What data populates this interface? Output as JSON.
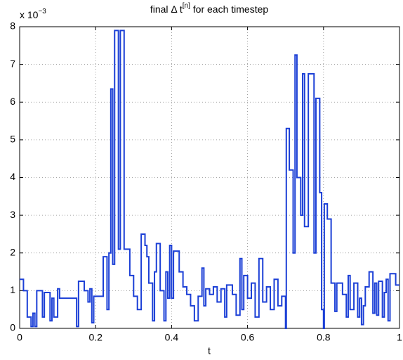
{
  "chart_data": {
    "type": "line",
    "title": {
      "text": "final Δ t",
      "superscript": "[n]",
      "rest": " for each timestep"
    },
    "multiplier": {
      "text": "x 10",
      "superscript": "−3"
    },
    "x_label": "t",
    "drawstyle": "steps-post",
    "grid": true,
    "xlim": [
      0,
      1
    ],
    "xticks": [
      0,
      0.2,
      0.4,
      0.6,
      0.8,
      1
    ],
    "ylim": [
      0,
      8
    ],
    "yticks": [
      0,
      1,
      2,
      3,
      4,
      5,
      6,
      7,
      8
    ],
    "x": [
      0,
      0.01,
      0.02,
      0.03,
      0.035,
      0.04,
      0.045,
      0.06,
      0.065,
      0.08,
      0.085,
      0.09,
      0.1,
      0.105,
      0.15,
      0.155,
      0.17,
      0.18,
      0.185,
      0.19,
      0.195,
      0.22,
      0.23,
      0.235,
      0.24,
      0.245,
      0.25,
      0.26,
      0.265,
      0.275,
      0.29,
      0.3,
      0.31,
      0.32,
      0.33,
      0.335,
      0.34,
      0.35,
      0.355,
      0.36,
      0.37,
      0.38,
      0.385,
      0.39,
      0.395,
      0.4,
      0.405,
      0.42,
      0.43,
      0.44,
      0.45,
      0.46,
      0.47,
      0.48,
      0.485,
      0.49,
      0.5,
      0.51,
      0.52,
      0.53,
      0.54,
      0.545,
      0.56,
      0.57,
      0.58,
      0.585,
      0.59,
      0.6,
      0.61,
      0.62,
      0.63,
      0.64,
      0.65,
      0.66,
      0.67,
      0.68,
      0.69,
      0.7,
      0.702,
      0.71,
      0.72,
      0.725,
      0.73,
      0.74,
      0.745,
      0.75,
      0.76,
      0.775,
      0.78,
      0.79,
      0.795,
      0.8,
      0.802,
      0.81,
      0.82,
      0.83,
      0.835,
      0.85,
      0.86,
      0.865,
      0.87,
      0.88,
      0.89,
      0.895,
      0.9,
      0.905,
      0.91,
      0.92,
      0.93,
      0.935,
      0.94,
      0.945,
      0.955,
      0.96,
      0.965,
      0.97,
      0.975,
      0.99,
      1
    ],
    "series": [
      {
        "color": "#1b3fd6",
        "values": [
          1.3,
          1.0,
          0.3,
          0.05,
          0.4,
          0.05,
          1.0,
          0.3,
          0.95,
          0.2,
          0.8,
          0.3,
          1.05,
          0.8,
          0.05,
          1.25,
          1.0,
          0.7,
          1.05,
          0.15,
          0.85,
          1.9,
          0.5,
          2.0,
          6.35,
          1.7,
          7.9,
          2.1,
          7.9,
          2.1,
          1.4,
          0.85,
          0.5,
          2.5,
          2.2,
          1.9,
          1.2,
          0.2,
          1.5,
          2.25,
          1.0,
          0.2,
          1.5,
          0.8,
          2.2,
          0.8,
          2.05,
          1.5,
          1.1,
          0.9,
          0.6,
          0.2,
          0.85,
          1.6,
          0.6,
          1.05,
          0.9,
          1.1,
          0.7,
          1.05,
          0.3,
          1.15,
          0.9,
          0.35,
          1.85,
          0.5,
          1.4,
          0.8,
          1.2,
          0.3,
          1.85,
          0.7,
          1.1,
          0.5,
          1.3,
          0.6,
          0.85,
          0,
          5.3,
          4.2,
          2.0,
          7.25,
          4.0,
          3.0,
          6.75,
          2.7,
          6.75,
          2.0,
          6.1,
          3.6,
          0.5,
          0,
          3.3,
          2.9,
          1.2,
          0.45,
          1.2,
          0.9,
          0.3,
          1.4,
          0.5,
          1.2,
          0.3,
          0.8,
          0.1,
          0.6,
          1.1,
          1.5,
          0.4,
          1.2,
          0.35,
          1.25,
          0.3,
          0.95,
          1.3,
          0.2,
          1.45,
          1.15,
          1.15
        ]
      }
    ]
  }
}
